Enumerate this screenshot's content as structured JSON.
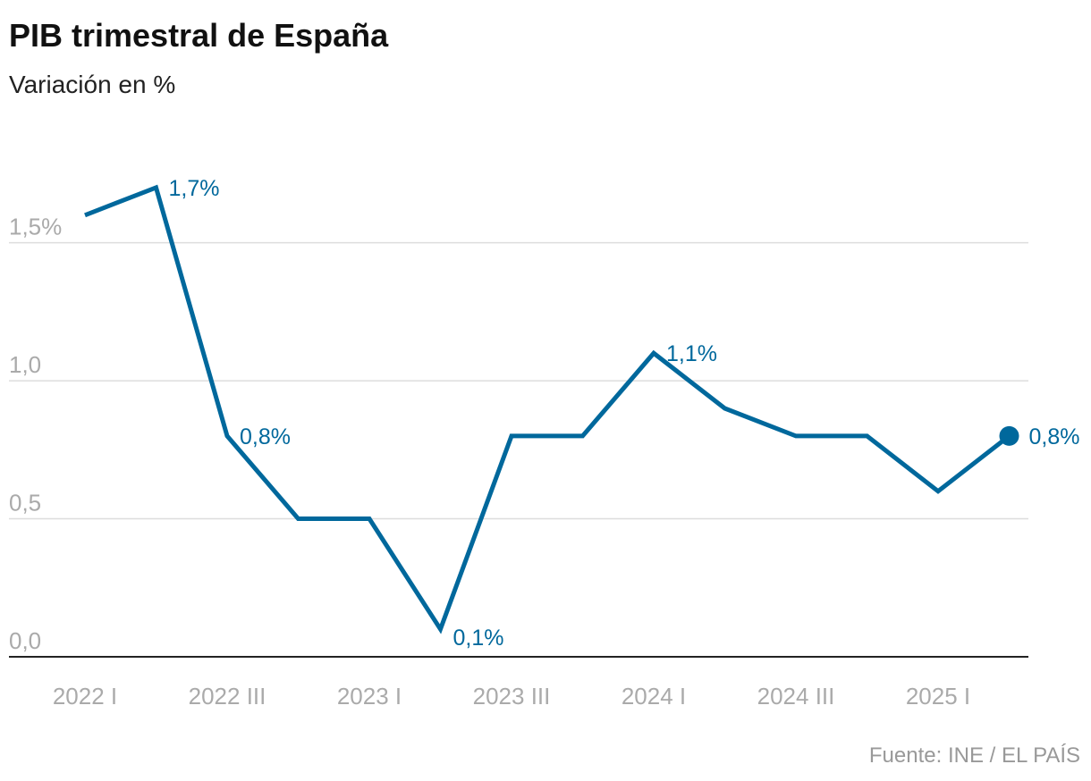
{
  "chart_data": {
    "type": "line",
    "title": "PIB trimestral de España",
    "subtitle": "Variación en %",
    "source": "Fuente: INE / EL PAÍS",
    "categories": [
      "2022 I",
      null,
      "2022 III",
      null,
      "2023 I",
      null,
      "2023 III",
      null,
      "2024 I",
      null,
      "2024 III",
      null,
      "2025 I",
      null
    ],
    "series": [
      {
        "name": "PIB",
        "color": "#00689c",
        "values": [
          1.6,
          1.7,
          0.8,
          0.5,
          0.5,
          0.1,
          0.8,
          0.8,
          1.1,
          0.9,
          0.8,
          0.8,
          0.6,
          0.8
        ],
        "value_labels": [
          null,
          "1,7%",
          "0,8%",
          null,
          null,
          "0,1%",
          null,
          null,
          "1,1%",
          null,
          null,
          null,
          null,
          "0,8%"
        ]
      }
    ],
    "ylim": [
      0,
      1.8
    ],
    "yticks": [
      {
        "value": 0,
        "label": "0,0"
      },
      {
        "value": 0.5,
        "label": "0,5"
      },
      {
        "value": 1,
        "label": "1,0"
      },
      {
        "value": 1.5,
        "label": "1,5%"
      }
    ],
    "grid": true
  }
}
